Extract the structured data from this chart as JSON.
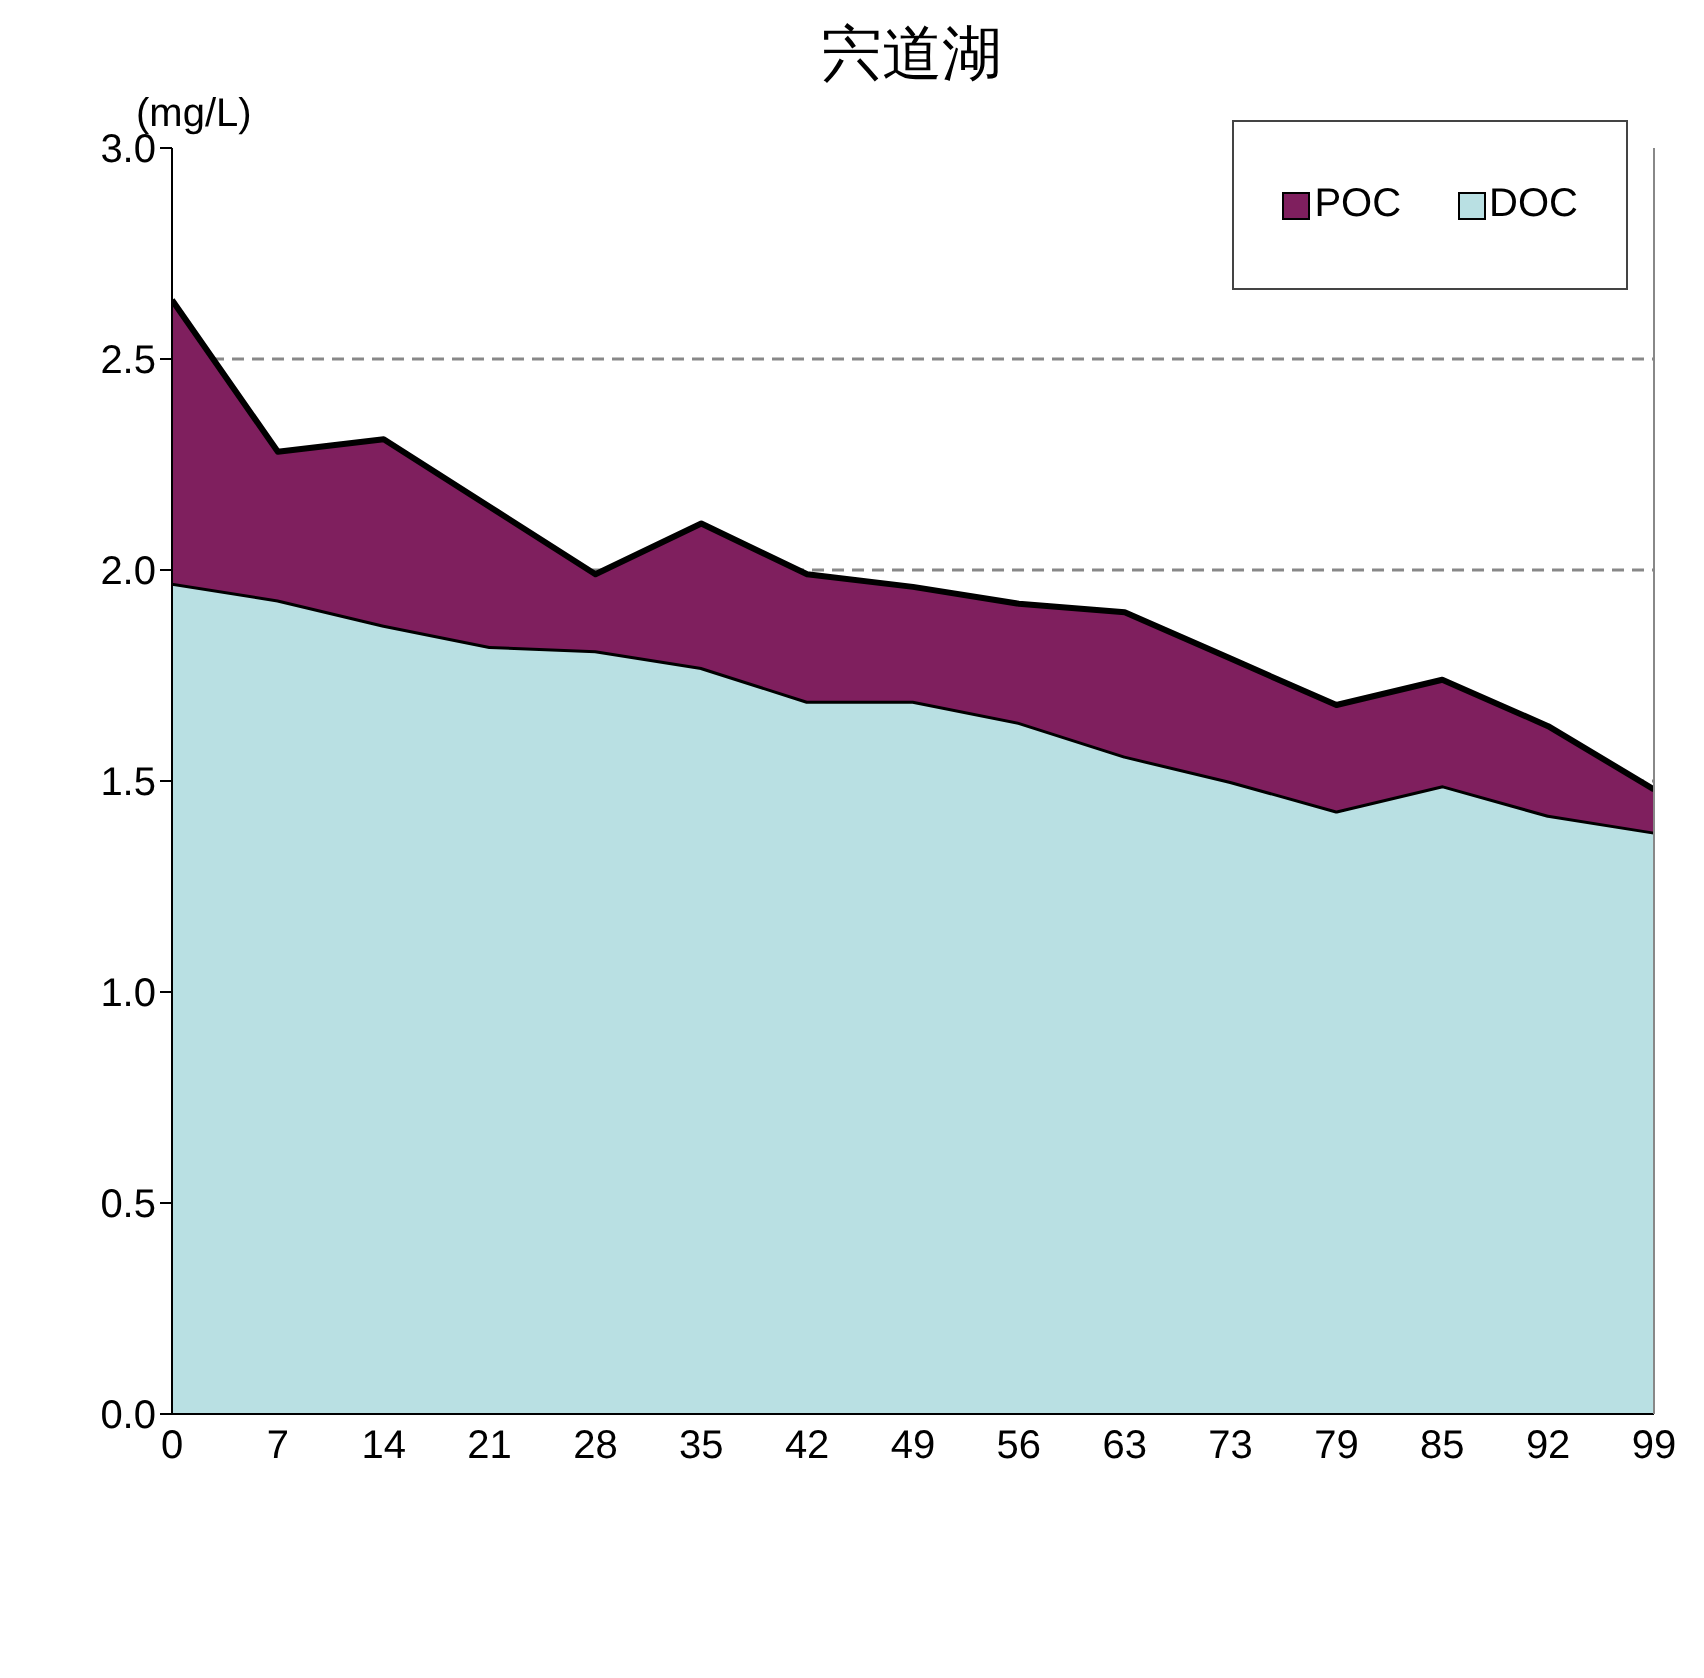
{
  "chart_data": {
    "type": "area",
    "title": "宍道湖",
    "ylabel": "(mg/L)",
    "stacked": true,
    "categories": [
      "0",
      "7",
      "14",
      "21",
      "28",
      "35",
      "42",
      "49",
      "56",
      "63",
      "73",
      "79",
      "85",
      "92",
      "99"
    ],
    "series": [
      {
        "name": "DOC",
        "color": "#b9e0e3",
        "values": [
          1.97,
          1.93,
          1.87,
          1.82,
          1.81,
          1.77,
          1.69,
          1.69,
          1.64,
          1.56,
          1.5,
          1.43,
          1.49,
          1.42,
          1.38
        ]
      },
      {
        "name": "POC",
        "color": "#7f1f5e",
        "values": [
          0.67,
          0.35,
          0.44,
          0.33,
          0.18,
          0.34,
          0.3,
          0.27,
          0.28,
          0.34,
          0.29,
          0.25,
          0.25,
          0.21,
          0.1
        ]
      }
    ],
    "ylim": [
      0,
      3
    ],
    "yticks": [
      {
        "value": 0,
        "label": "0.0"
      },
      {
        "value": 0.5,
        "label": "0.5"
      },
      {
        "value": 1,
        "label": "1.0"
      },
      {
        "value": 1.5,
        "label": "1.5"
      },
      {
        "value": 2,
        "label": "2.0"
      },
      {
        "value": 2.5,
        "label": "2.5"
      },
      {
        "value": 3,
        "label": "3.0"
      }
    ],
    "grid": "y",
    "legend": "top right"
  }
}
